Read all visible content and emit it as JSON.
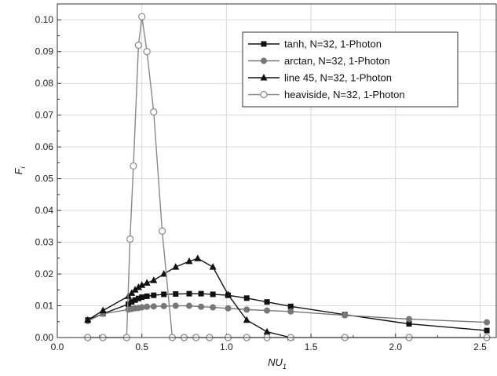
{
  "chart_data": {
    "type": "line",
    "xlabel": "NU",
    "xlabel_sub": "1",
    "ylabel": "F",
    "ylabel_sub": "i",
    "xlim": [
      0.0,
      2.6
    ],
    "ylim": [
      0.0,
      0.105
    ],
    "xticks": [
      0.0,
      0.5,
      1.0,
      1.5,
      2.0,
      2.5
    ],
    "xtick_labels": [
      "0.0",
      "0.5",
      "1.0",
      "1.5",
      "2.0",
      "2.5"
    ],
    "yticks": [
      0.0,
      0.01,
      0.02,
      0.03,
      0.04,
      0.05,
      0.06,
      0.07,
      0.08,
      0.09,
      0.1
    ],
    "ytick_labels": [
      "0.00",
      "0.01",
      "0.02",
      "0.03",
      "0.04",
      "0.05",
      "0.06",
      "0.07",
      "0.08",
      "0.09",
      "0.10"
    ],
    "grid": true,
    "legend_position": "top-right",
    "series": [
      {
        "name": "tanh, N=32, 1-Photon",
        "marker": "square-filled",
        "color": "#111111",
        "x": [
          0.18,
          0.27,
          0.42,
          0.44,
          0.46,
          0.48,
          0.5,
          0.53,
          0.57,
          0.63,
          0.7,
          0.78,
          0.85,
          0.92,
          1.01,
          1.12,
          1.24,
          1.38,
          1.7,
          2.08,
          2.54
        ],
        "y": [
          0.0055,
          0.0075,
          0.0105,
          0.0112,
          0.0118,
          0.0123,
          0.0127,
          0.013,
          0.0133,
          0.0136,
          0.0137,
          0.0138,
          0.0138,
          0.0136,
          0.0133,
          0.0124,
          0.0112,
          0.0098,
          0.0072,
          0.0043,
          0.0022
        ]
      },
      {
        "name": "arctan, N=32, 1-Photon",
        "marker": "circle-filled",
        "color": "#777777",
        "x": [
          0.18,
          0.27,
          0.42,
          0.44,
          0.46,
          0.48,
          0.5,
          0.53,
          0.57,
          0.63,
          0.7,
          0.78,
          0.85,
          0.92,
          1.01,
          1.12,
          1.24,
          1.38,
          1.7,
          2.08,
          2.54
        ],
        "y": [
          0.0052,
          0.0075,
          0.0088,
          0.009,
          0.0092,
          0.0093,
          0.0095,
          0.0097,
          0.0098,
          0.0099,
          0.01,
          0.01,
          0.0097,
          0.0095,
          0.0092,
          0.0088,
          0.0085,
          0.0082,
          0.007,
          0.0058,
          0.0048
        ]
      },
      {
        "name": "line 45, N=32, 1-Photon",
        "marker": "triangle-filled",
        "color": "#111111",
        "x": [
          0.18,
          0.27,
          0.42,
          0.44,
          0.46,
          0.48,
          0.5,
          0.53,
          0.57,
          0.63,
          0.7,
          0.78,
          0.83,
          0.92,
          1.01,
          1.12,
          1.24,
          1.38
        ],
        "y": [
          0.0055,
          0.0085,
          0.013,
          0.014,
          0.015,
          0.0158,
          0.0165,
          0.0172,
          0.018,
          0.02,
          0.0222,
          0.024,
          0.0249,
          0.0222,
          0.0135,
          0.0055,
          0.0018,
          0.0
        ]
      },
      {
        "name": "heaviside, N=32, 1-Photon",
        "marker": "circle-open",
        "color": "#888888",
        "x": [
          0.18,
          0.27,
          0.41,
          0.43,
          0.45,
          0.48,
          0.5,
          0.53,
          0.57,
          0.62,
          0.68,
          0.75,
          0.82,
          0.9,
          1.01,
          1.12,
          1.24,
          1.38,
          1.7,
          2.08,
          2.54
        ],
        "y": [
          0.0,
          0.0,
          0.0,
          0.031,
          0.054,
          0.092,
          0.101,
          0.09,
          0.071,
          0.0335,
          0.0,
          0.0,
          0.0,
          0.0,
          0.0,
          0.0,
          0.0,
          0.0,
          0.0,
          0.0,
          0.0
        ]
      }
    ]
  }
}
